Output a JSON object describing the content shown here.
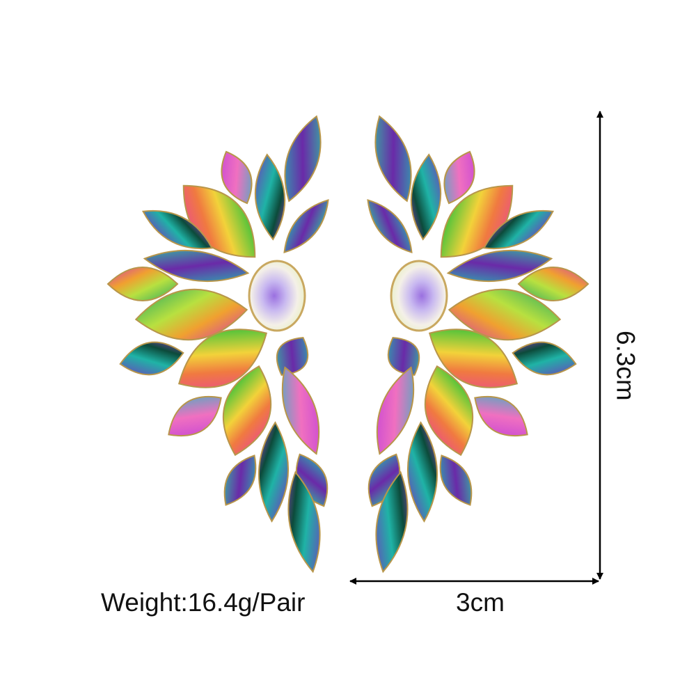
{
  "product": {
    "weight_label": "Weight:16.4g/Pair",
    "width_label": "3cm",
    "height_label": "6.3cm"
  },
  "colors": {
    "background": "#ffffff",
    "dimension_line": "#000000",
    "setting_metal": "#b8964a",
    "gem_purple": "#8a3fc8",
    "gem_teal": "#1fb3a6",
    "gem_pink": "#e83ca8",
    "gem_yellow": "#f2d23a",
    "gem_green": "#5cc43a"
  },
  "images": [
    {
      "name": "left-earring",
      "description_icon": "rhinestone-half-wing-earring"
    },
    {
      "name": "right-earring",
      "description_icon": "rhinestone-half-wing-earring"
    }
  ]
}
